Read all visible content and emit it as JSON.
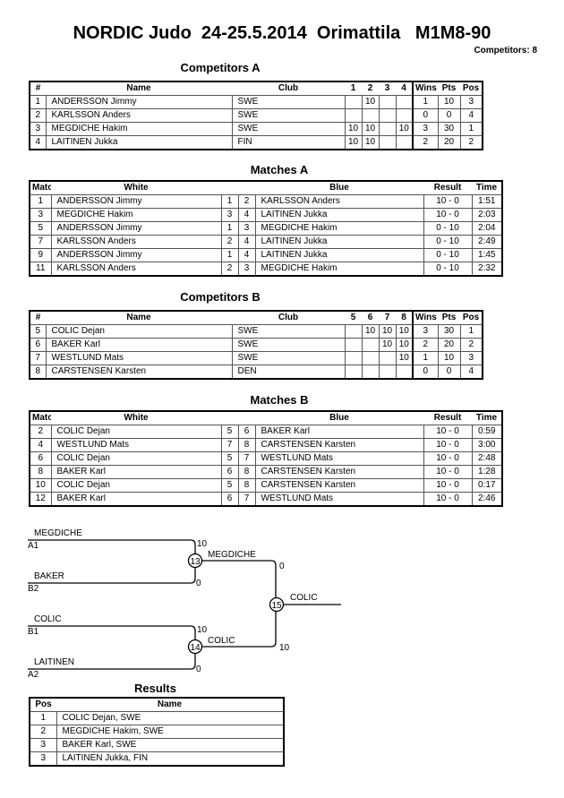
{
  "title": "NORDIC Judo  24-25.5.2014  Orimattila   M1M8-90",
  "competitors_count": "Competitors: 8",
  "competitors_a": {
    "heading": "Competitors A",
    "headers": [
      "#",
      "Name",
      "Club",
      "1",
      "2",
      "3",
      "4",
      "Wins",
      "Pts",
      "Pos"
    ],
    "rows": [
      [
        "1",
        "ANDERSSON Jimmy",
        "SWE",
        "",
        "10",
        "",
        "",
        "1",
        "10",
        "3"
      ],
      [
        "2",
        "KARLSSON Anders",
        "SWE",
        "",
        "",
        "",
        "",
        "0",
        "0",
        "4"
      ],
      [
        "3",
        "MEGDICHE Hakim",
        "SWE",
        "10",
        "10",
        "",
        "10",
        "3",
        "30",
        "1"
      ],
      [
        "4",
        "LAITINEN Jukka",
        "FIN",
        "10",
        "10",
        "",
        "",
        "2",
        "20",
        "2"
      ]
    ]
  },
  "matches_a": {
    "heading": "Matches A",
    "headers": [
      "Match",
      "White",
      "",
      "",
      "Blue",
      "Result",
      "Time"
    ],
    "rows": [
      [
        "1",
        "ANDERSSON Jimmy",
        "1",
        "2",
        "KARLSSON Anders",
        "10 - 0",
        "1:51"
      ],
      [
        "3",
        "MEGDICHE Hakim",
        "3",
        "4",
        "LAITINEN Jukka",
        "10 - 0",
        "2:03"
      ],
      [
        "5",
        "ANDERSSON Jimmy",
        "1",
        "3",
        "MEGDICHE Hakim",
        "0 - 10",
        "2:04"
      ],
      [
        "7",
        "KARLSSON Anders",
        "2",
        "4",
        "LAITINEN Jukka",
        "0 - 10",
        "2:49"
      ],
      [
        "9",
        "ANDERSSON Jimmy",
        "1",
        "4",
        "LAITINEN Jukka",
        "0 - 10",
        "1:45"
      ],
      [
        "11",
        "KARLSSON Anders",
        "2",
        "3",
        "MEGDICHE Hakim",
        "0 - 10",
        "2:32"
      ]
    ]
  },
  "competitors_b": {
    "heading": "Competitors B",
    "headers": [
      "#",
      "Name",
      "Club",
      "5",
      "6",
      "7",
      "8",
      "Wins",
      "Pts",
      "Pos"
    ],
    "rows": [
      [
        "5",
        "COLIC Dejan",
        "SWE",
        "",
        "10",
        "10",
        "10",
        "3",
        "30",
        "1"
      ],
      [
        "6",
        "BAKER Karl",
        "SWE",
        "",
        "",
        "10",
        "10",
        "2",
        "20",
        "2"
      ],
      [
        "7",
        "WESTLUND Mats",
        "SWE",
        "",
        "",
        "",
        "10",
        "1",
        "10",
        "3"
      ],
      [
        "8",
        "CARSTENSEN Karsten",
        "DEN",
        "",
        "",
        "",
        "",
        "0",
        "0",
        "4"
      ]
    ]
  },
  "matches_b": {
    "heading": "Matches B",
    "headers": [
      "Match",
      "White",
      "",
      "",
      "Blue",
      "Result",
      "Time"
    ],
    "rows": [
      [
        "2",
        "COLIC Dejan",
        "5",
        "6",
        "BAKER Karl",
        "10 - 0",
        "0:59"
      ],
      [
        "4",
        "WESTLUND Mats",
        "7",
        "8",
        "CARSTENSEN Karsten",
        "10 - 0",
        "3:00"
      ],
      [
        "6",
        "COLIC Dejan",
        "5",
        "7",
        "WESTLUND Mats",
        "10 - 0",
        "2:48"
      ],
      [
        "8",
        "BAKER Karl",
        "6",
        "8",
        "CARSTENSEN Karsten",
        "10 - 0",
        "1:28"
      ],
      [
        "10",
        "COLIC Dejan",
        "5",
        "8",
        "CARSTENSEN Karsten",
        "10 - 0",
        "0:17"
      ],
      [
        "12",
        "BAKER Karl",
        "6",
        "7",
        "WESTLUND Mats",
        "10 - 0",
        "2:46"
      ]
    ]
  },
  "bracket": {
    "semi1": {
      "match": "13",
      "top_name": "MEGDICHE",
      "top_seed": "A1",
      "top_score": "10",
      "bottom_name": "BAKER",
      "bottom_seed": "B2",
      "bottom_score": "0",
      "winner": "MEGDICHE"
    },
    "semi2": {
      "match": "14",
      "top_name": "COLIC",
      "top_seed": "B1",
      "top_score": "10",
      "bottom_name": "LAITINEN",
      "bottom_seed": "A2",
      "bottom_score": "0",
      "winner": "COLIC"
    },
    "final": {
      "match": "15",
      "top_score": "0",
      "bottom_score": "10",
      "winner": "COLIC"
    }
  },
  "results": {
    "heading": "Results",
    "headers": [
      "Pos",
      "Name"
    ],
    "rows": [
      [
        "1",
        "COLIC Dejan, SWE"
      ],
      [
        "2",
        "MEGDICHE Hakim, SWE"
      ],
      [
        "3",
        "BAKER Karl, SWE"
      ],
      [
        "3",
        "LAITINEN Jukka, FIN"
      ]
    ]
  }
}
